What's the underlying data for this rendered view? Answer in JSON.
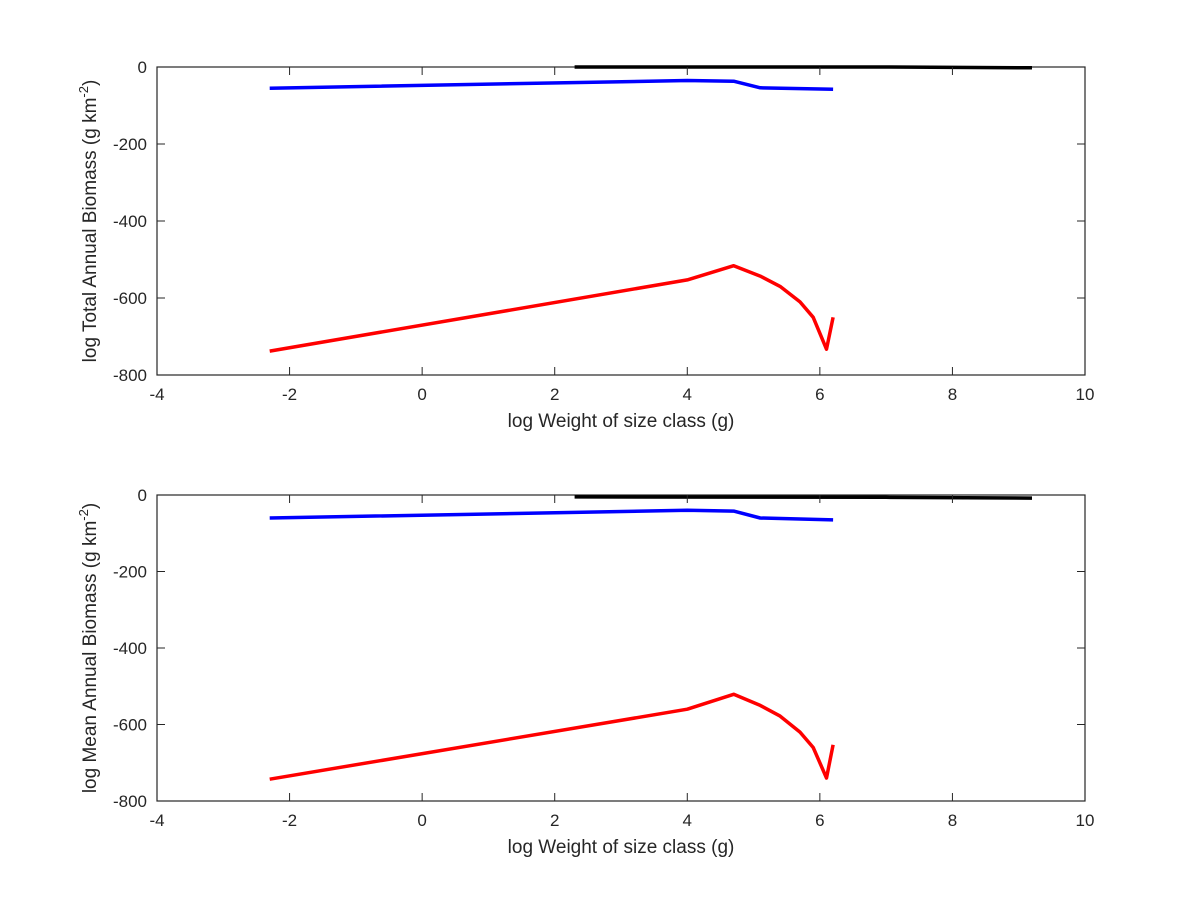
{
  "chart_data": [
    {
      "type": "line",
      "title": "",
      "xlabel": "log Weight of size class (g)",
      "ylabel": {
        "main": "log Total Annual Biomass (g km",
        "sup": "-2",
        "close": ")"
      },
      "xlim": [
        -4,
        10
      ],
      "ylim": [
        -800,
        0
      ],
      "xticks": [
        -4,
        -2,
        0,
        2,
        4,
        6,
        8,
        10
      ],
      "yticks": [
        -800,
        -600,
        -400,
        -200,
        0
      ],
      "grid": false,
      "legend": "none",
      "series": [
        {
          "color": "#000000",
          "points": [
            [
              2.3,
              0
            ],
            [
              7.0,
              0
            ],
            [
              9.2,
              -2
            ]
          ]
        },
        {
          "color": "#0000ff",
          "points": [
            [
              -2.3,
              -55
            ],
            [
              4.0,
              -35
            ],
            [
              4.7,
              -37
            ],
            [
              5.1,
              -54
            ],
            [
              6.2,
              -58
            ]
          ]
        },
        {
          "color": "#ff0000",
          "points": [
            [
              -2.3,
              -738
            ],
            [
              4.0,
              -553
            ],
            [
              4.7,
              -516
            ],
            [
              5.1,
              -543
            ],
            [
              5.4,
              -570
            ],
            [
              5.7,
              -610
            ],
            [
              5.9,
              -650
            ],
            [
              6.1,
              -733
            ],
            [
              6.2,
              -650
            ]
          ]
        }
      ]
    },
    {
      "type": "line",
      "title": "",
      "xlabel": "log Weight of size class (g)",
      "ylabel": {
        "main": "log Mean Annual Biomass (g km",
        "sup": "-2",
        "close": ")"
      },
      "xlim": [
        -4,
        10
      ],
      "ylim": [
        -800,
        0
      ],
      "xticks": [
        -4,
        -2,
        0,
        2,
        4,
        6,
        8,
        10
      ],
      "yticks": [
        -800,
        -600,
        -400,
        -200,
        0
      ],
      "grid": false,
      "legend": "none",
      "series": [
        {
          "color": "#000000",
          "points": [
            [
              2.3,
              -5
            ],
            [
              7.0,
              -6
            ],
            [
              9.2,
              -8
            ]
          ]
        },
        {
          "color": "#0000ff",
          "points": [
            [
              -2.3,
              -60
            ],
            [
              4.0,
              -40
            ],
            [
              4.7,
              -42
            ],
            [
              5.1,
              -60
            ],
            [
              6.2,
              -65
            ]
          ]
        },
        {
          "color": "#ff0000",
          "points": [
            [
              -2.3,
              -743
            ],
            [
              4.0,
              -560
            ],
            [
              4.7,
              -521
            ],
            [
              5.1,
              -550
            ],
            [
              5.4,
              -578
            ],
            [
              5.7,
              -620
            ],
            [
              5.9,
              -660
            ],
            [
              6.1,
              -740
            ],
            [
              6.2,
              -653
            ]
          ]
        }
      ]
    }
  ]
}
